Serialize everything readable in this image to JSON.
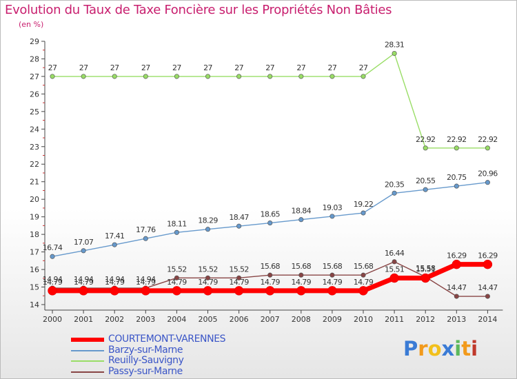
{
  "chart_data": {
    "type": "line",
    "title": "Evolution du Taux de Taxe Foncière sur les Propriétés Non Bâties",
    "unit_label": "(en %)",
    "xlabel": "",
    "ylabel": "",
    "x": [
      "2000",
      "2001",
      "2002",
      "2003",
      "2004",
      "2005",
      "2006",
      "2007",
      "2008",
      "2009",
      "2010",
      "2011",
      "2012",
      "2013",
      "2014"
    ],
    "ylim": [
      14,
      29
    ],
    "yticks": [
      "14",
      "15",
      "16",
      "17",
      "18",
      "19",
      "20",
      "21",
      "22",
      "23",
      "24",
      "25",
      "26",
      "27",
      "28",
      "29"
    ],
    "grid": false,
    "legend_position": "bottom-left",
    "series": [
      {
        "name": "COURTEMONT-VARENNES",
        "color": "#ff0000",
        "values": [
          14.79,
          14.79,
          14.79,
          14.79,
          14.79,
          14.79,
          14.79,
          14.79,
          14.79,
          14.79,
          14.79,
          15.51,
          15.51,
          16.29,
          16.29
        ],
        "labels": [
          "14.79",
          "14.79",
          "14.79",
          "14.79",
          "14.79",
          "14.79",
          "14.79",
          "14.79",
          "14.79",
          "14.79",
          "14.79",
          "15.51",
          "15.51",
          "16.29",
          "16.29"
        ]
      },
      {
        "name": "Barzy-sur-Marne",
        "color": "#6699cc",
        "values": [
          16.74,
          17.07,
          17.41,
          17.76,
          18.11,
          18.29,
          18.47,
          18.65,
          18.84,
          19.03,
          19.22,
          20.35,
          20.55,
          20.75,
          20.96
        ],
        "labels": [
          "16.74",
          "17.07",
          "17.41",
          "17.76",
          "18.11",
          "18.29",
          "18.47",
          "18.65",
          "18.84",
          "19.03",
          "19.22",
          "20.35",
          "20.55",
          "20.75",
          "20.96"
        ]
      },
      {
        "name": "Reuilly-Sauvigny",
        "color": "#99dd66",
        "values": [
          27,
          27,
          27,
          27,
          27,
          27,
          27,
          27,
          27,
          27,
          27,
          28.31,
          22.92,
          22.92,
          22.92
        ],
        "labels": [
          "27",
          "27",
          "27",
          "27",
          "27",
          "27",
          "27",
          "27",
          "27",
          "27",
          "27",
          "28.31",
          "22.92",
          "22.92",
          "22.92"
        ]
      },
      {
        "name": "Passy-sur-Marne",
        "color": "#884444",
        "values": [
          14.94,
          14.94,
          14.94,
          14.94,
          15.52,
          15.52,
          15.52,
          15.68,
          15.68,
          15.68,
          15.68,
          16.44,
          15.58,
          14.47,
          14.47
        ],
        "labels": [
          "14.94",
          "14.94",
          "14.94",
          "14.94",
          "15.52",
          "15.52",
          "15.52",
          "15.68",
          "15.68",
          "15.68",
          "15.68",
          "16.44",
          "15.58",
          "14.47",
          "14.47"
        ]
      }
    ]
  },
  "logo": {
    "letters": [
      "P",
      "r",
      "o",
      "x",
      "i",
      "t",
      "i"
    ],
    "colors": [
      "#3a7bd5",
      "#f29a1c",
      "#f2c01c",
      "#3a7bd5",
      "#5cb85c",
      "#f29a1c",
      "#c0392b"
    ]
  }
}
